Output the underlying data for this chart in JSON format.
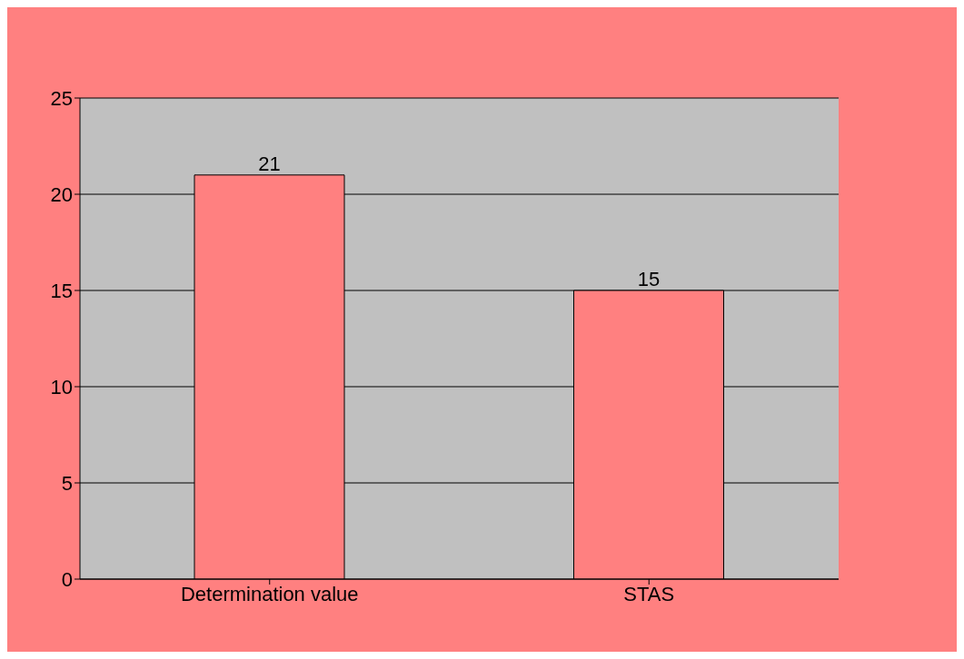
{
  "chart_data": {
    "type": "bar",
    "categories": [
      "Determination value",
      "STAS"
    ],
    "values": [
      21,
      15
    ],
    "color": "#ff8080",
    "ylim": [
      0,
      25
    ],
    "yticks": [
      0,
      5,
      10,
      15,
      20,
      25
    ],
    "grid": "y",
    "data_labels": true
  }
}
